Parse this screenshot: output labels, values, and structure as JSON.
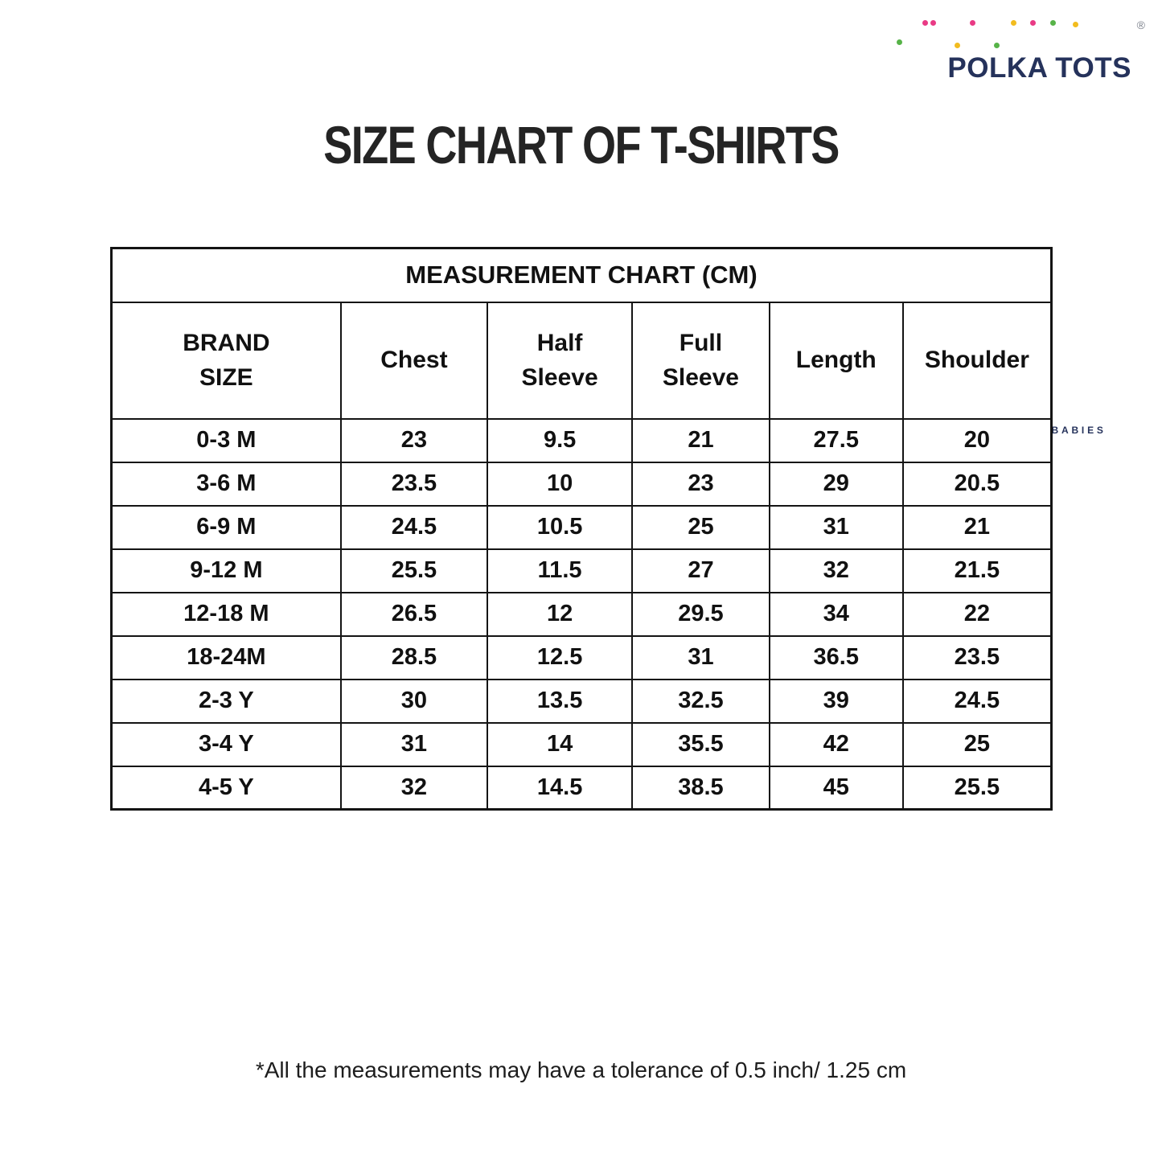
{
  "logo": {
    "brand": "POLKA TOTS",
    "registered_mark": "®",
    "tagline": "TREASURES FOR BABIES"
  },
  "title": "SIZE CHART OF T-SHIRTS",
  "table": {
    "title": "MEASUREMENT CHART (CM)",
    "columns": [
      "BRAND\nSIZE",
      "Chest",
      "Half\nSleeve",
      "Full\nSleeve",
      "Length",
      "Shoulder"
    ],
    "rows": [
      {
        "size": "0-3 M",
        "values": [
          "23",
          "9.5",
          "21",
          "27.5",
          "20"
        ]
      },
      {
        "size": "3-6 M",
        "values": [
          "23.5",
          "10",
          "23",
          "29",
          "20.5"
        ]
      },
      {
        "size": "6-9 M",
        "values": [
          "24.5",
          "10.5",
          "25",
          "31",
          "21"
        ]
      },
      {
        "size": "9-12 M",
        "values": [
          "25.5",
          "11.5",
          "27",
          "32",
          "21.5"
        ]
      },
      {
        "size": "12-18 M",
        "values": [
          "26.5",
          "12",
          "29.5",
          "34",
          "22"
        ]
      },
      {
        "size": "18-24M",
        "values": [
          "28.5",
          "12.5",
          "31",
          "36.5",
          "23.5"
        ]
      },
      {
        "size": "2-3 Y",
        "values": [
          "30",
          "13.5",
          "32.5",
          "39",
          "24.5"
        ]
      },
      {
        "size": "3-4 Y",
        "values": [
          "31",
          "14",
          "35.5",
          "42",
          "25"
        ]
      },
      {
        "size": "4-5 Y",
        "values": [
          "32",
          "14.5",
          "38.5",
          "45",
          "25.5"
        ]
      }
    ]
  },
  "chart_data": {
    "type": "table",
    "title": "MEASUREMENT CHART (CM)",
    "categories": [
      "0-3 M",
      "3-6 M",
      "6-9 M",
      "9-12 M",
      "12-18 M",
      "18-24M",
      "2-3 Y",
      "3-4 Y",
      "4-5 Y"
    ],
    "series": [
      {
        "name": "Chest",
        "values": [
          23,
          23.5,
          24.5,
          25.5,
          26.5,
          28.5,
          30,
          31,
          32
        ]
      },
      {
        "name": "Half Sleeve",
        "values": [
          9.5,
          10,
          10.5,
          11.5,
          12,
          12.5,
          13.5,
          14,
          14.5
        ]
      },
      {
        "name": "Full Sleeve",
        "values": [
          21,
          23,
          25,
          27,
          29.5,
          31,
          32.5,
          35.5,
          38.5
        ]
      },
      {
        "name": "Length",
        "values": [
          27.5,
          29,
          31,
          32,
          34,
          36.5,
          39,
          42,
          45
        ]
      },
      {
        "name": "Shoulder",
        "values": [
          20,
          20.5,
          21,
          21.5,
          22,
          23.5,
          24.5,
          25,
          25.5
        ]
      }
    ]
  },
  "footnote": "*All the measurements may have a tolerance of 0.5 inch/ 1.25 cm",
  "colors": {
    "navy": "#25325b",
    "dot_green": "#57b348",
    "dot_pink": "#e93a85",
    "dot_yellow": "#f2bc1f",
    "ink": "#141414"
  }
}
